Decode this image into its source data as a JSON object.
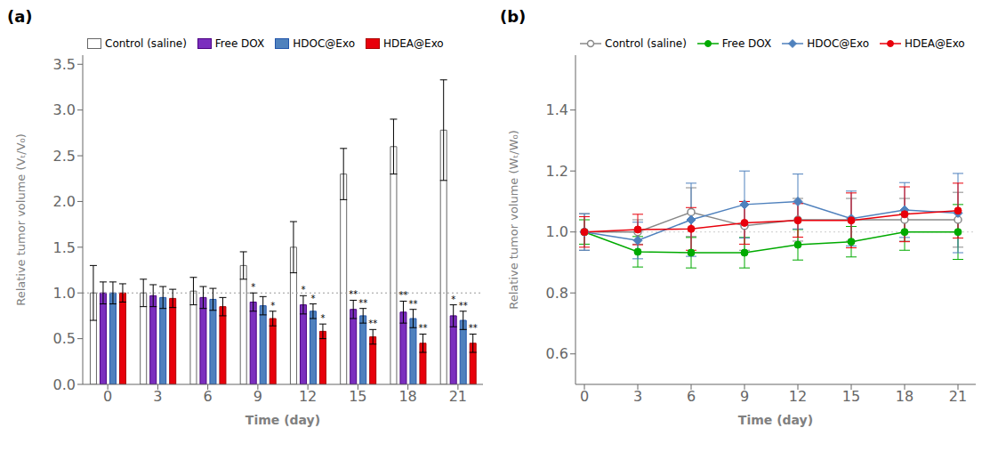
{
  "chart_data": [
    {
      "type": "bar",
      "title": "(a)",
      "x_label": "Time (day)",
      "y_label": "Relative tumor volume (Vₜ/V₀)",
      "categories": [
        "0",
        "3",
        "6",
        "9",
        "12",
        "15",
        "18",
        "21"
      ],
      "ylim": [
        0.0,
        3.6
      ],
      "yticks": [
        {
          "value": 0.0,
          "label": "0.0"
        },
        0.5,
        {
          "value": 1.0,
          "label": "1.0"
        },
        1.5,
        {
          "value": 2.0,
          "label": "2.0"
        },
        2.5,
        {
          "value": 3.0,
          "label": "3.0"
        },
        3.5
      ],
      "grid": false,
      "legend": "upper left",
      "reference_line": 1.0,
      "series": [
        {
          "name": "Control (saline)",
          "color": "#ffffff",
          "edge_color": "#666666",
          "values": [
            1.0,
            1.0,
            1.02,
            1.3,
            1.5,
            2.3,
            2.6,
            2.78
          ],
          "errors": [
            0.3,
            0.15,
            0.15,
            0.15,
            0.28,
            0.28,
            0.3,
            0.55
          ],
          "significance": [
            null,
            null,
            null,
            null,
            null,
            null,
            null,
            null
          ]
        },
        {
          "name": "Free DOX",
          "color": "#7b2fbe",
          "edge_color": "#4b0082",
          "values": [
            1.0,
            0.97,
            0.95,
            0.9,
            0.87,
            0.82,
            0.79,
            0.75
          ],
          "errors": [
            0.12,
            0.12,
            0.12,
            0.1,
            0.1,
            0.1,
            0.12,
            0.12
          ],
          "significance": [
            null,
            null,
            null,
            "*",
            "*",
            "**",
            "**",
            "*"
          ]
        },
        {
          "name": "HDOC@Exo",
          "color": "#4f81bd",
          "edge_color": "#2255aa",
          "values": [
            1.0,
            0.95,
            0.93,
            0.86,
            0.8,
            0.75,
            0.72,
            0.7
          ],
          "errors": [
            0.12,
            0.12,
            0.12,
            0.1,
            0.08,
            0.08,
            0.1,
            0.1
          ],
          "significance": [
            null,
            null,
            null,
            null,
            "*",
            "**",
            "**",
            "**"
          ]
        },
        {
          "name": "HDEA@Exo",
          "color": "#e8000b",
          "edge_color": "#aa0000",
          "values": [
            1.0,
            0.94,
            0.85,
            0.72,
            0.58,
            0.52,
            0.45,
            0.45
          ],
          "errors": [
            0.1,
            0.1,
            0.1,
            0.08,
            0.08,
            0.08,
            0.1,
            0.1
          ],
          "significance": [
            null,
            null,
            null,
            "*",
            "*",
            "**",
            "**",
            "**"
          ]
        }
      ]
    },
    {
      "type": "line",
      "title": "(b)",
      "x_label": "Time (day)",
      "y_label": "Relative tumor volume (Wₜ/W₀)",
      "x": [
        0,
        3,
        6,
        9,
        12,
        15,
        18,
        21
      ],
      "xlim": [
        -0.5,
        22
      ],
      "xticks": [
        0,
        3,
        6,
        9,
        12,
        15,
        18,
        21
      ],
      "ylim": [
        0.5,
        1.58
      ],
      "yticks": [
        0.6,
        0.8,
        {
          "value": 1.0,
          "label": "1.0"
        },
        1.2,
        1.4
      ],
      "grid": false,
      "legend": "upper left",
      "reference_line": 1.0,
      "series": [
        {
          "name": "Control (saline)",
          "color": "#888888",
          "marker": "open_circle",
          "line_style": "solid",
          "values": [
            1.0,
            1.0,
            1.065,
            1.02,
            1.04,
            1.04,
            1.04,
            1.04
          ],
          "errors": [
            0.06,
            0.04,
            0.08,
            0.08,
            0.07,
            0.07,
            0.07,
            0.09
          ]
        },
        {
          "name": "Free DOX",
          "color": "#00aa00",
          "marker": "circle",
          "line_style": "solid",
          "values": [
            1.0,
            0.935,
            0.932,
            0.932,
            0.958,
            0.968,
            1.0,
            1.0
          ],
          "errors": [
            0.04,
            0.05,
            0.05,
            0.05,
            0.05,
            0.05,
            0.06,
            0.09
          ]
        },
        {
          "name": "HDOC@Exo",
          "color": "#4f81bd",
          "marker": "diamond",
          "line_style": "solid",
          "values": [
            1.0,
            0.972,
            1.04,
            1.09,
            1.1,
            1.044,
            1.072,
            1.062
          ],
          "errors": [
            0.06,
            0.06,
            0.12,
            0.11,
            0.09,
            0.09,
            0.09,
            0.13
          ]
        },
        {
          "name": "HDEA@Exo",
          "color": "#e8000b",
          "marker": "circle",
          "line_style": "solid",
          "values": [
            1.0,
            1.008,
            1.01,
            1.03,
            1.038,
            1.038,
            1.058,
            1.07
          ],
          "errors": [
            0.05,
            0.05,
            0.07,
            0.07,
            0.055,
            0.09,
            0.09,
            0.09
          ]
        }
      ]
    }
  ]
}
